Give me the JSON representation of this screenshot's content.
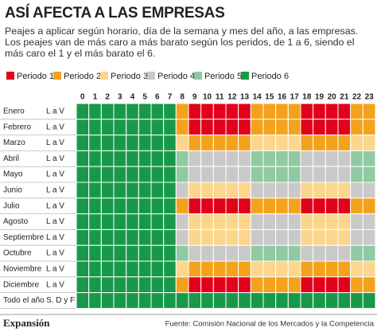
{
  "header": {
    "title": "ASÍ AFECTA A LAS EMPRESAS",
    "description": "Peajes a aplicar según horario, día de la semana y mes del año, a las empresas. Los peajes van de más caro a más barato según los peridos, de 1 a 6,  siendo el más caro el 1 y el más barato el 6."
  },
  "legend": [
    {
      "label": "Periodo 1",
      "color": "#e2001a"
    },
    {
      "label": "Periodo 2",
      "color": "#f4a21c"
    },
    {
      "label": "Periodo 3",
      "color": "#fbd68c"
    },
    {
      "label": "Periodo 4",
      "color": "#c9c9c9"
    },
    {
      "label": "Periodo 5",
      "color": "#8fcaa2"
    },
    {
      "label": "Periodo 6",
      "color": "#18994a"
    }
  ],
  "table": {
    "hours": [
      0,
      1,
      2,
      3,
      4,
      5,
      6,
      7,
      8,
      9,
      10,
      11,
      12,
      13,
      14,
      15,
      16,
      17,
      18,
      19,
      20,
      21,
      22,
      23
    ],
    "rows": [
      {
        "month": "Enero",
        "days": "L a V",
        "periods": [
          6,
          6,
          6,
          6,
          6,
          6,
          6,
          6,
          2,
          1,
          1,
          1,
          1,
          1,
          2,
          2,
          2,
          2,
          1,
          1,
          1,
          1,
          2,
          2
        ]
      },
      {
        "month": "Febrero",
        "days": "L a V",
        "periods": [
          6,
          6,
          6,
          6,
          6,
          6,
          6,
          6,
          2,
          1,
          1,
          1,
          1,
          1,
          2,
          2,
          2,
          2,
          1,
          1,
          1,
          1,
          2,
          2
        ]
      },
      {
        "month": "Marzo",
        "days": "L a V",
        "periods": [
          6,
          6,
          6,
          6,
          6,
          6,
          6,
          6,
          3,
          2,
          2,
          2,
          2,
          2,
          3,
          3,
          3,
          3,
          2,
          2,
          2,
          2,
          3,
          3
        ]
      },
      {
        "month": "Abril",
        "days": "L a V",
        "periods": [
          6,
          6,
          6,
          6,
          6,
          6,
          6,
          6,
          5,
          4,
          4,
          4,
          4,
          4,
          5,
          5,
          5,
          5,
          4,
          4,
          4,
          4,
          5,
          5
        ]
      },
      {
        "month": "Mayo",
        "days": "L a V",
        "periods": [
          6,
          6,
          6,
          6,
          6,
          6,
          6,
          6,
          5,
          4,
          4,
          4,
          4,
          4,
          5,
          5,
          5,
          5,
          4,
          4,
          4,
          4,
          5,
          5
        ]
      },
      {
        "month": "Junio",
        "days": "L a V",
        "periods": [
          6,
          6,
          6,
          6,
          6,
          6,
          6,
          6,
          4,
          3,
          3,
          3,
          3,
          3,
          4,
          4,
          4,
          4,
          3,
          3,
          3,
          3,
          4,
          4
        ]
      },
      {
        "month": "Julio",
        "days": "L a V",
        "periods": [
          6,
          6,
          6,
          6,
          6,
          6,
          6,
          6,
          2,
          1,
          1,
          1,
          1,
          1,
          2,
          2,
          2,
          2,
          1,
          1,
          1,
          1,
          2,
          2
        ]
      },
      {
        "month": "Agosto",
        "days": "L a V",
        "periods": [
          6,
          6,
          6,
          6,
          6,
          6,
          6,
          6,
          4,
          3,
          3,
          3,
          3,
          3,
          4,
          4,
          4,
          4,
          3,
          3,
          3,
          3,
          4,
          4
        ]
      },
      {
        "month": "Septiembre",
        "days": "L a V",
        "periods": [
          6,
          6,
          6,
          6,
          6,
          6,
          6,
          6,
          4,
          3,
          3,
          3,
          3,
          3,
          4,
          4,
          4,
          4,
          3,
          3,
          3,
          3,
          4,
          4
        ]
      },
      {
        "month": "Octubre",
        "days": "L a V",
        "periods": [
          6,
          6,
          6,
          6,
          6,
          6,
          6,
          6,
          5,
          4,
          4,
          4,
          4,
          4,
          5,
          5,
          5,
          5,
          4,
          4,
          4,
          4,
          5,
          5
        ]
      },
      {
        "month": "Noviembre",
        "days": "L a V",
        "periods": [
          6,
          6,
          6,
          6,
          6,
          6,
          6,
          6,
          3,
          2,
          2,
          2,
          2,
          2,
          3,
          3,
          3,
          3,
          2,
          2,
          2,
          2,
          3,
          3
        ]
      },
      {
        "month": "Diciembre",
        "days": "L a V",
        "periods": [
          6,
          6,
          6,
          6,
          6,
          6,
          6,
          6,
          2,
          1,
          1,
          1,
          1,
          1,
          2,
          2,
          2,
          2,
          1,
          1,
          1,
          1,
          2,
          2
        ]
      },
      {
        "month": "Todo el año",
        "days": "S. D y F",
        "periods": [
          6,
          6,
          6,
          6,
          6,
          6,
          6,
          6,
          6,
          6,
          6,
          6,
          6,
          6,
          6,
          6,
          6,
          6,
          6,
          6,
          6,
          6,
          6,
          6
        ]
      }
    ]
  },
  "footer": {
    "brand": "Expansión",
    "source": "Fuente: Comisión Nacional de los Mercados y la Competencia"
  }
}
